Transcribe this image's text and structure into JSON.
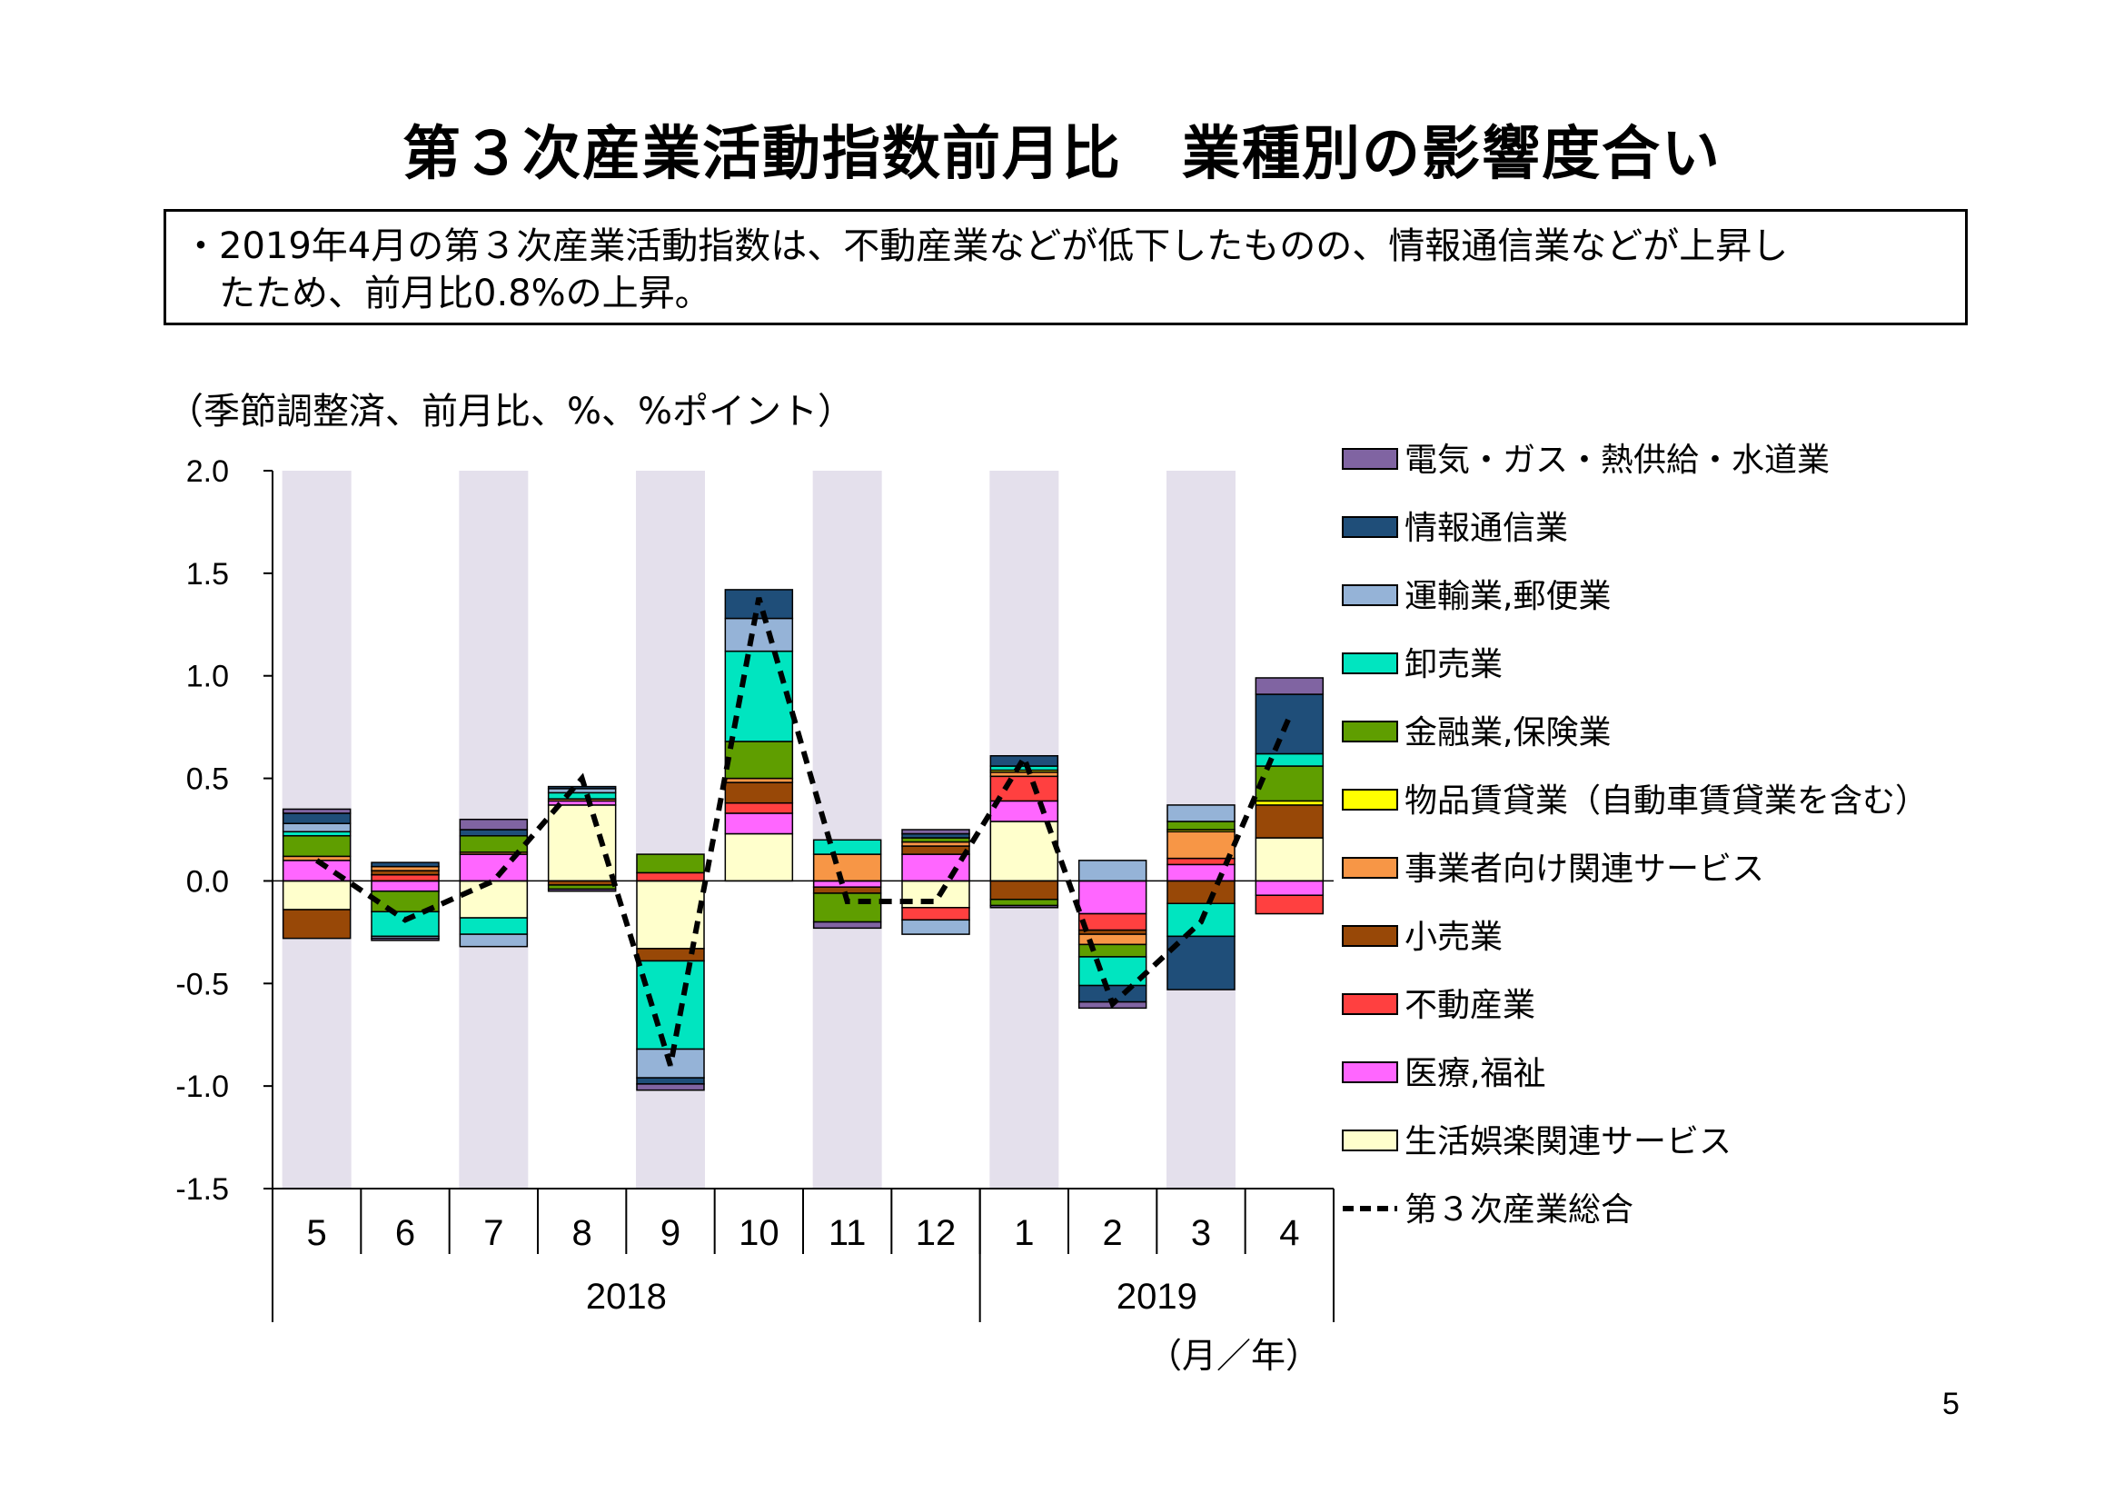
{
  "title": "第３次産業活動指数前月比　業種別の影響度合い",
  "summary": {
    "line1": "・2019年4月の第３次産業活動指数は、不動産業などが低下したものの、情報通信業などが上昇し",
    "line2": "たため、前月比0.8%の上昇。"
  },
  "unit_note": "（季節調整済、前月比、%、%ポイント）",
  "page_number": "5",
  "chart_data": {
    "type": "bar",
    "stacked": true,
    "ylim": [
      -1.5,
      2.0
    ],
    "yticks": [
      "2.0",
      "1.5",
      "1.0",
      "0.5",
      "0.0",
      "-0.5",
      "-1.0",
      "-1.5"
    ],
    "categories": [
      "5",
      "6",
      "7",
      "8",
      "9",
      "10",
      "11",
      "12",
      "1",
      "2",
      "3",
      "4"
    ],
    "year_groups": [
      {
        "label": "2018",
        "span": 8
      },
      {
        "label": "2019",
        "span": 4
      }
    ],
    "xlabel": "（月／年）",
    "shaded_categories": [
      0,
      2,
      4,
      6,
      8,
      10
    ],
    "shade_color": "#e4e0ec",
    "series": [
      {
        "name": "電気・ガス・熱供給・水道業",
        "color": "#8064a2",
        "values": [
          0.02,
          -0.01,
          0.05,
          -0.01,
          -0.03,
          0.0,
          -0.03,
          0.02,
          -0.01,
          -0.03,
          0.0,
          0.08
        ]
      },
      {
        "name": "情報通信業",
        "color": "#1f4e79",
        "values": [
          0.05,
          0.02,
          0.03,
          0.01,
          -0.03,
          0.14,
          0.0,
          0.02,
          0.05,
          -0.08,
          -0.26,
          0.29
        ]
      },
      {
        "name": "運輸業,郵便業",
        "color": "#95b3d7",
        "values": [
          0.04,
          -0.01,
          -0.06,
          0.02,
          -0.14,
          0.16,
          0.0,
          -0.07,
          0.0,
          0.1,
          0.08,
          0.0
        ]
      },
      {
        "name": "卸売業",
        "color": "#00e5c0",
        "values": [
          0.02,
          -0.12,
          -0.08,
          0.03,
          -0.43,
          0.44,
          0.07,
          0.0,
          0.02,
          -0.14,
          -0.16,
          0.06
        ]
      },
      {
        "name": "金融業,保険業",
        "color": "#5f9e00",
        "values": [
          0.1,
          -0.1,
          0.08,
          -0.02,
          0.09,
          0.18,
          -0.14,
          0.02,
          -0.03,
          -0.06,
          0.04,
          0.17
        ]
      },
      {
        "name": "物品賃貸業（自動車賃貸業を含む）",
        "color": "#ffff00",
        "values": [
          0.0,
          0.0,
          0.0,
          0.0,
          0.0,
          0.0,
          0.0,
          0.0,
          0.01,
          0.0,
          0.01,
          0.02
        ]
      },
      {
        "name": "事業者向け関連サービス",
        "color": "#f79646",
        "values": [
          0.02,
          0.02,
          0.01,
          0.01,
          0.0,
          0.02,
          0.13,
          0.02,
          0.02,
          -0.05,
          0.13,
          0.0
        ]
      },
      {
        "name": "小売業",
        "color": "#984807",
        "values": [
          -0.14,
          0.02,
          0.0,
          -0.02,
          -0.06,
          0.1,
          -0.03,
          0.04,
          -0.09,
          -0.02,
          -0.11,
          0.16
        ]
      },
      {
        "name": "不動産業",
        "color": "#ff4040",
        "values": [
          0.0,
          0.03,
          0.0,
          0.0,
          0.04,
          0.05,
          0.0,
          -0.06,
          0.12,
          -0.08,
          0.03,
          -0.09
        ]
      },
      {
        "name": "医療,福祉",
        "color": "#ff66ff",
        "values": [
          0.1,
          -0.05,
          0.13,
          0.02,
          0.0,
          0.1,
          -0.03,
          0.13,
          0.1,
          -0.16,
          0.08,
          -0.07
        ]
      },
      {
        "name": "生活娯楽関連サービス",
        "color": "#ffffcc",
        "values": [
          -0.14,
          0.0,
          -0.18,
          0.37,
          -0.33,
          0.23,
          0.0,
          -0.13,
          0.29,
          0.0,
          0.0,
          0.21
        ]
      }
    ],
    "total_series": {
      "name": "第３次産業総合",
      "color": "#000000",
      "values": [
        0.1,
        -0.19,
        0.0,
        0.5,
        -0.9,
        1.38,
        -0.1,
        -0.1,
        0.6,
        -0.6,
        -0.2,
        0.8
      ]
    }
  }
}
